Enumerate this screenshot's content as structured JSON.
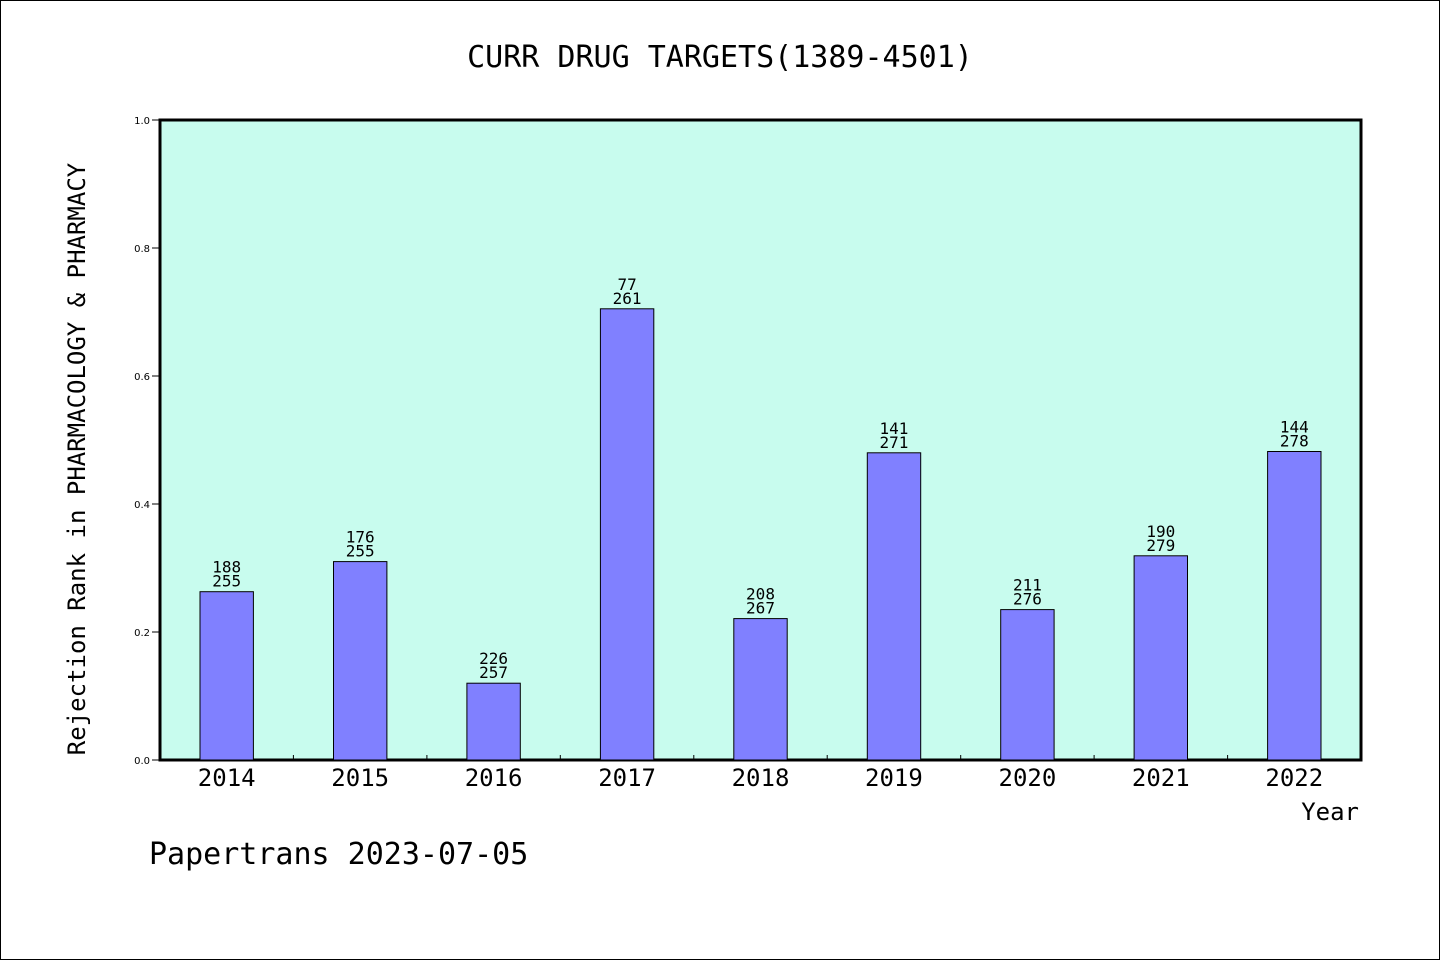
{
  "chart_data": {
    "type": "bar",
    "title": "CURR DRUG TARGETS(1389-4501)",
    "xlabel": "Year",
    "ylabel": "Rejection Rank in PHARMACOLOGY & PHARMACY",
    "ylim": [
      0,
      1.0
    ],
    "yticks": [
      "0.0",
      "0.2",
      "0.4",
      "0.6",
      "0.8",
      "1.0"
    ],
    "grid": false,
    "categories": [
      "2014",
      "2015",
      "2016",
      "2017",
      "2018",
      "2019",
      "2020",
      "2021",
      "2022"
    ],
    "values": [
      0.263,
      0.31,
      0.12,
      0.705,
      0.221,
      0.48,
      0.235,
      0.319,
      0.482
    ],
    "annotations": [
      [
        "188",
        "255"
      ],
      [
        "176",
        "255"
      ],
      [
        "226",
        "257"
      ],
      [
        "77",
        "261"
      ],
      [
        "208",
        "267"
      ],
      [
        "141",
        "271"
      ],
      [
        "211",
        "276"
      ],
      [
        "190",
        "279"
      ],
      [
        "144",
        "278"
      ]
    ],
    "colors": {
      "bar": "#8080ff",
      "plot_background": "#c8fcee",
      "bar_edge": "#000000"
    }
  },
  "footer": "Papertrans 2023-07-05"
}
